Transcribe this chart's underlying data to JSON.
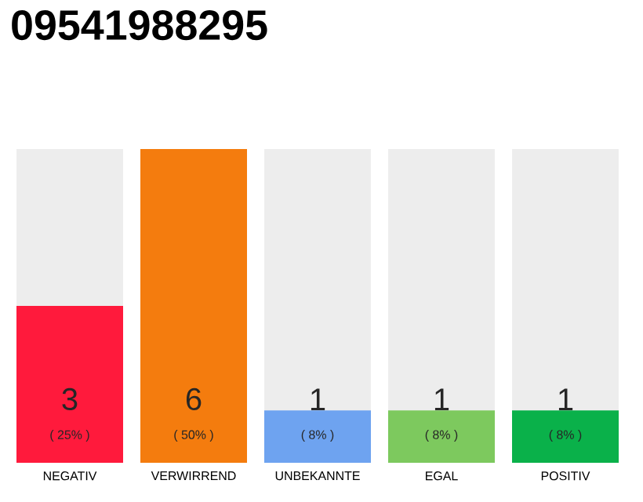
{
  "chart_data": {
    "type": "bar",
    "title": "09541988295",
    "categories": [
      "NEGATIV",
      "VERWIRREND",
      "UNBEKANNTE",
      "EGAL",
      "POSITIV"
    ],
    "values": [
      3,
      6,
      1,
      1,
      1
    ],
    "colors": [
      "#ff1a3c",
      "#f47c0e",
      "#6ea3f0",
      "#7dc95e",
      "#0ab14a"
    ],
    "ylim": [
      0,
      6
    ],
    "data_labels": true,
    "annotations": [
      "( 25% )",
      "( 50% )",
      "( 8% )",
      "( 8% )",
      "( 8% )"
    ]
  }
}
